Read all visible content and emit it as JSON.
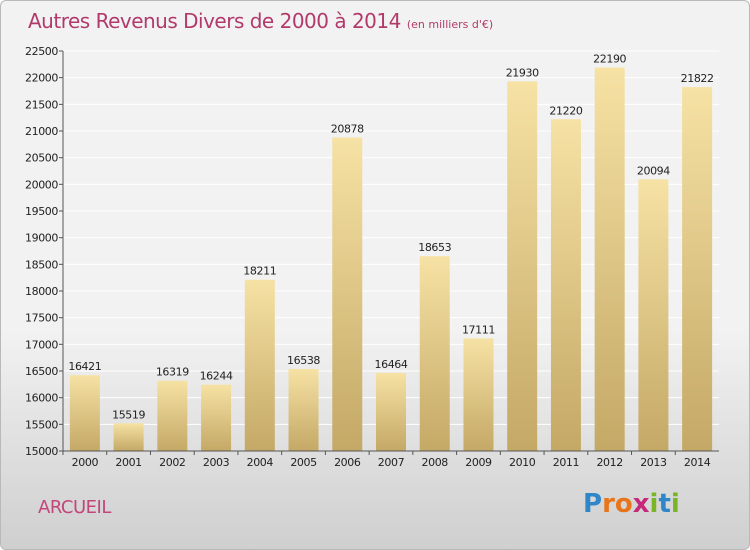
{
  "title": "Autres Revenus Divers de 2000 à 2014",
  "subtitle": "(en milliers d'€)",
  "town": "ARCUEIL",
  "logo": {
    "text": "Proxiti",
    "letters": [
      {
        "ch": "P",
        "color": "#2f86c8"
      },
      {
        "ch": "r",
        "color": "#e8751a"
      },
      {
        "ch": "o",
        "color": "#e8751a"
      },
      {
        "ch": "x",
        "color": "#c7297a"
      },
      {
        "ch": "i",
        "color": "#7ab526"
      },
      {
        "ch": "t",
        "color": "#2f86c8"
      },
      {
        "ch": "i",
        "color": "#7ab526"
      }
    ]
  },
  "colors": {
    "title": "#b23a6a",
    "bar_light": "#f5dfa0",
    "bar_dark": "#c6ab6a",
    "grid": "#ffffff"
  },
  "chart_data": {
    "type": "bar",
    "categories": [
      "2000",
      "2001",
      "2002",
      "2003",
      "2004",
      "2005",
      "2006",
      "2007",
      "2008",
      "2009",
      "2010",
      "2011",
      "2012",
      "2013",
      "2014"
    ],
    "values": [
      16421,
      15519,
      16319,
      16244,
      18211,
      16538,
      20878,
      16464,
      18653,
      17111,
      21930,
      21220,
      22190,
      20094,
      21822
    ],
    "ylim": [
      15000,
      22500
    ],
    "yticks": [
      15000,
      15500,
      16000,
      16500,
      17000,
      17500,
      18000,
      18500,
      19000,
      19500,
      20000,
      20500,
      21000,
      21500,
      22000,
      22500
    ],
    "grid": true,
    "data_labels": true
  }
}
